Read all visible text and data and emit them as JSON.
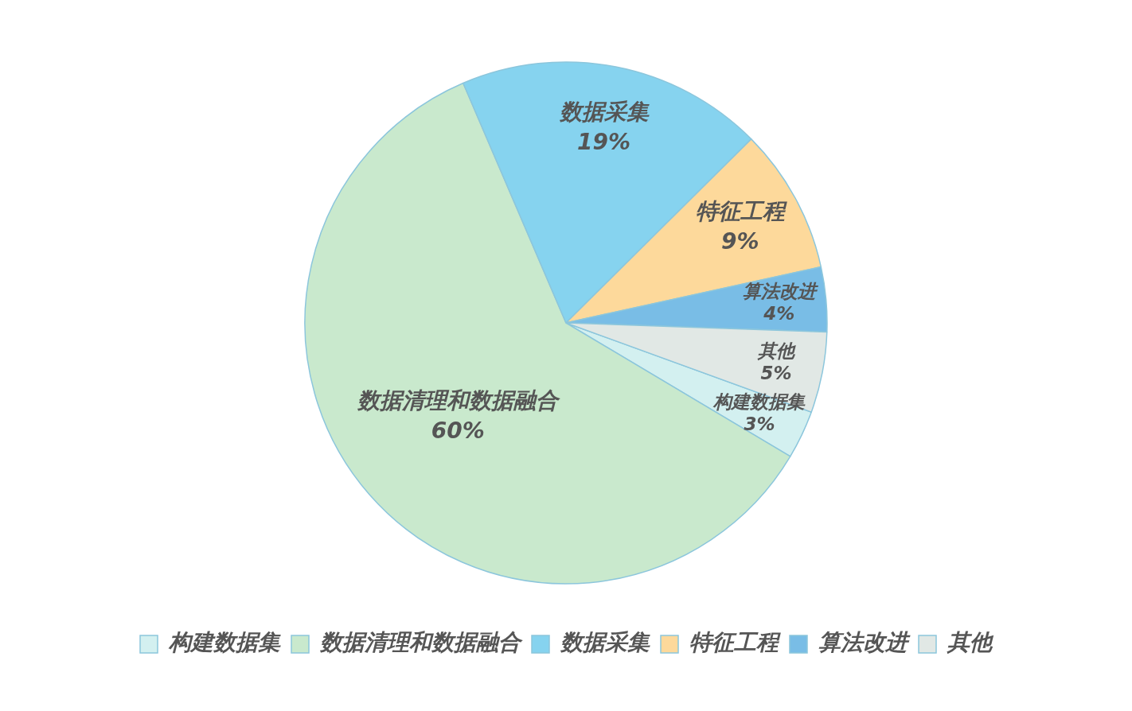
{
  "chart_data": {
    "type": "pie",
    "categories": [
      "构建数据集",
      "数据清理和数据融合",
      "数据采集",
      "特征工程",
      "算法改进",
      "其他"
    ],
    "values": [
      3,
      60,
      19,
      9,
      4,
      5
    ],
    "value_labels": [
      "3%",
      "60%",
      "19%",
      "9%",
      "4%",
      "5%"
    ],
    "colors": [
      "#d3f0f0",
      "#c9e9cd",
      "#86d3ef",
      "#fdd99b",
      "#79bde6",
      "#e1e8e5"
    ],
    "legend": "bottom"
  }
}
